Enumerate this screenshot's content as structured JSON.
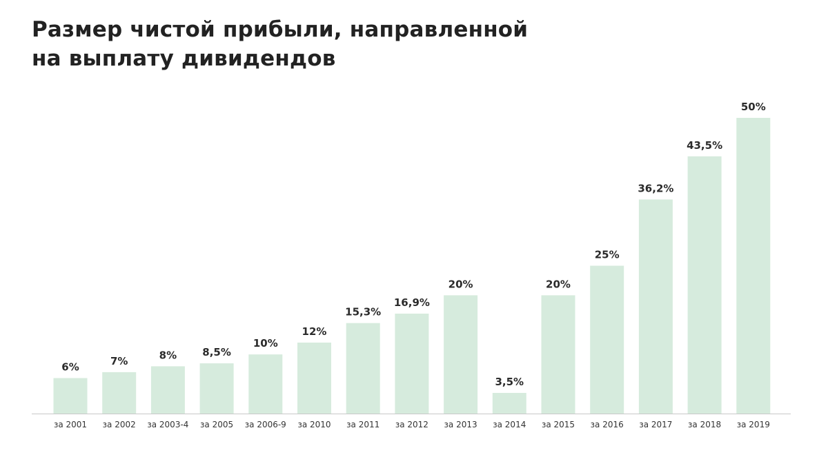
{
  "chart_data": {
    "type": "bar",
    "title": "Размер чистой прибыли, направленной на выплату дивидендов",
    "xlabel": "",
    "ylabel": "",
    "ylim": [
      0,
      50
    ],
    "grid": false,
    "categories": [
      "за 2001",
      "за 2002",
      "за 2003-4",
      "за 2005",
      "за 2006-9",
      "за 2010",
      "за 2011",
      "за 2012",
      "за 2013",
      "за 2014",
      "за 2015",
      "за 2016",
      "за 2017",
      "за 2018",
      "за 2019"
    ],
    "values": [
      6,
      7,
      8,
      8.5,
      10,
      12,
      15.3,
      16.9,
      20,
      3.5,
      20,
      25,
      36.2,
      43.5,
      50
    ],
    "data_labels": [
      "6%",
      "7%",
      "8%",
      "8,5%",
      "10%",
      "12%",
      "15,3%",
      "16,9%",
      "20%",
      "3,5%",
      "20%",
      "25%",
      "36,2%",
      "43,5%",
      "50%"
    ],
    "colors": {
      "bar": "#d6ebdd",
      "axis": "#c8c8c8",
      "label": "#2b2b2b",
      "tick": "#333333"
    }
  }
}
